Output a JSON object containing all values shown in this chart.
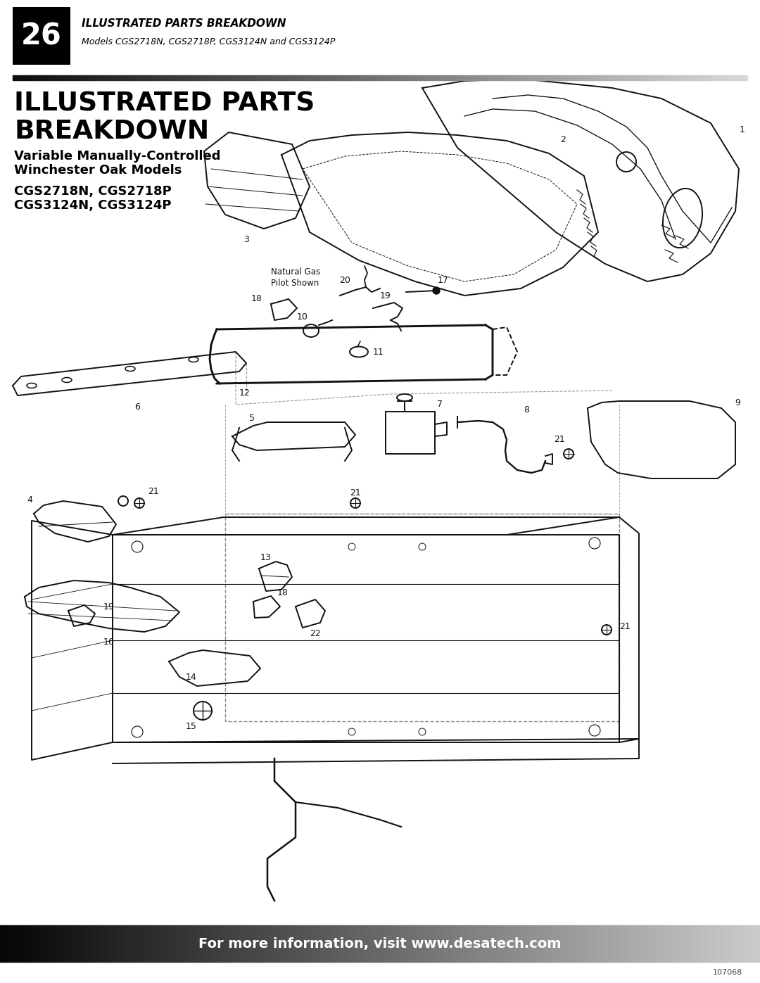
{
  "page_bg": "#ffffff",
  "header_bg": "#000000",
  "header_number": "26",
  "header_title": "ILLUSTRATED PARTS BREAKDOWN",
  "header_subtitle": "Models CGS2718N, CGS2718P, CGS3124N and CGS3124P",
  "section_title_line1": "ILLUSTRATED PARTS",
  "section_title_line2": "BREAKDOWN",
  "subtitle_line1": "Variable Manually-Controlled",
  "subtitle_line2": "Winchester Oak Models",
  "model_line1": "CGS2718N, CGS2718P",
  "model_line2": "CGS3124N, CGS3124P",
  "footer_text": "For more information, visit www.desatech.com",
  "footer_number": "107068",
  "nat_gas_note": "Natural Gas\nPilot Shown",
  "col": "#111111",
  "gray": "#888888",
  "light_gray": "#bbbbbb"
}
